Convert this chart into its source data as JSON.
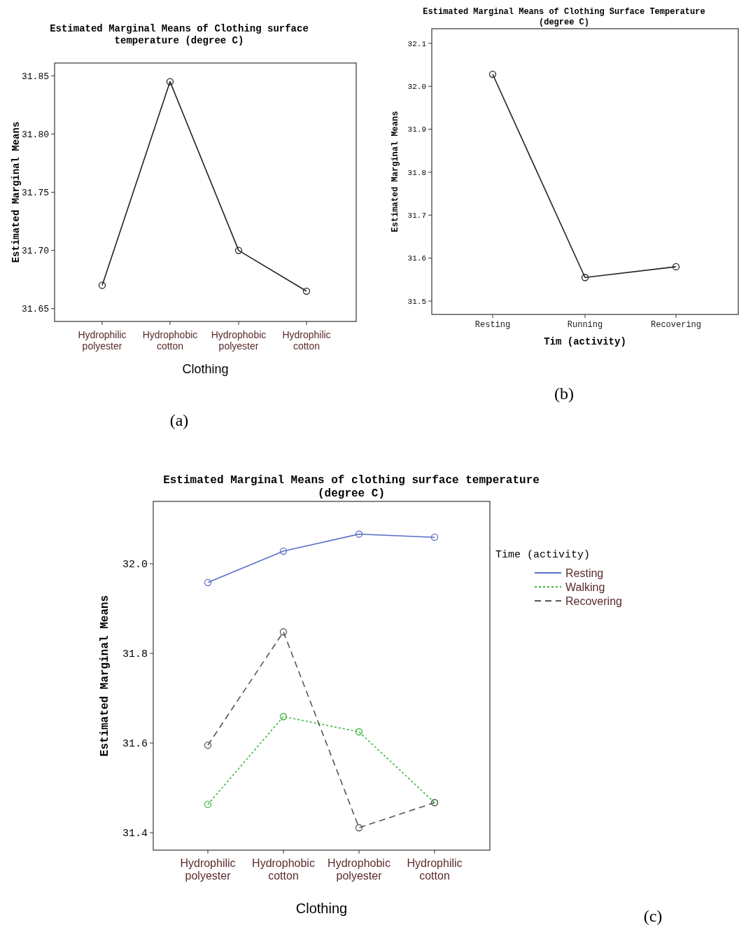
{
  "chart_data": [
    {
      "type": "line",
      "title": "Estimated Marginal Means of Clothing surface temperature (degree C)",
      "xlabel": "Clothing",
      "ylabel": "Estimated Marginal Means",
      "categories": [
        "Hydrophilic polyester",
        "Hydrophobic cotton",
        "Hydrophobic polyester",
        "Hydrophilic cotton"
      ],
      "series": [
        {
          "color": "#222222",
          "values": [
            31.67,
            31.845,
            31.7,
            31.665
          ],
          "line_style": "solid"
        }
      ],
      "ylim": [
        31.639,
        31.861
      ],
      "yticks": [
        {
          "value": 31.65,
          "label": "31.65"
        },
        {
          "value": 31.7,
          "label": "31.70"
        },
        {
          "value": 31.75,
          "label": "31.75"
        },
        {
          "value": 31.8,
          "label": "31.80"
        },
        {
          "value": 31.85,
          "label": "31.85"
        }
      ],
      "marker": "circle",
      "grid": false,
      "legend": false,
      "annotations": [
        "(a)"
      ]
    },
    {
      "type": "line",
      "title": "Estimated Marginal Means of Clothing Surface Temperature (degree C)",
      "xlabel": "Tim (activity)",
      "ylabel": "Estimated Marginal Means",
      "categories": [
        "Resting",
        "Running",
        "Recovering"
      ],
      "series": [
        {
          "color": "#222222",
          "values": [
            32.028,
            31.555,
            31.58
          ],
          "line_style": "solid"
        }
      ],
      "ylim": [
        31.469,
        32.134
      ],
      "yticks": [
        31.5,
        31.6,
        31.7,
        31.8,
        31.9,
        {
          "value": 32.0,
          "label": "32.0"
        },
        32.1
      ],
      "marker": "circle",
      "grid": false,
      "legend": false,
      "annotations": [
        "(b)"
      ]
    },
    {
      "type": "line",
      "title": "Estimated Marginal Means of clothing surface temperature (degree C)",
      "xlabel": "Clothing",
      "ylabel": "Estimated Marginal Means",
      "legend_title": "Time (activity)",
      "categories": [
        "Hydrophilic polyester",
        "Hydrophobic cotton",
        "Hydrophobic polyester",
        "Hydrophilic cotton"
      ],
      "series": [
        {
          "name": "Resting",
          "color": "#5a6fc8",
          "values": [
            31.958,
            32.028,
            32.066,
            32.059
          ],
          "line_style": "solid"
        },
        {
          "name": "Walking",
          "color": "#3cb83c",
          "values": [
            31.463,
            31.659,
            31.625,
            31.467
          ],
          "line_style": "dotted"
        },
        {
          "name": "Recovering",
          "color": "#555555",
          "values": [
            31.595,
            31.848,
            31.411,
            31.467
          ],
          "line_style": "dashed"
        }
      ],
      "ylim": [
        31.361,
        32.139
      ],
      "yticks": [
        31.4,
        31.6,
        31.8,
        {
          "value": 32.0,
          "label": "32.0"
        }
      ],
      "marker": "circle",
      "grid": false,
      "legend": "right",
      "annotations": [
        "(c)"
      ]
    }
  ]
}
